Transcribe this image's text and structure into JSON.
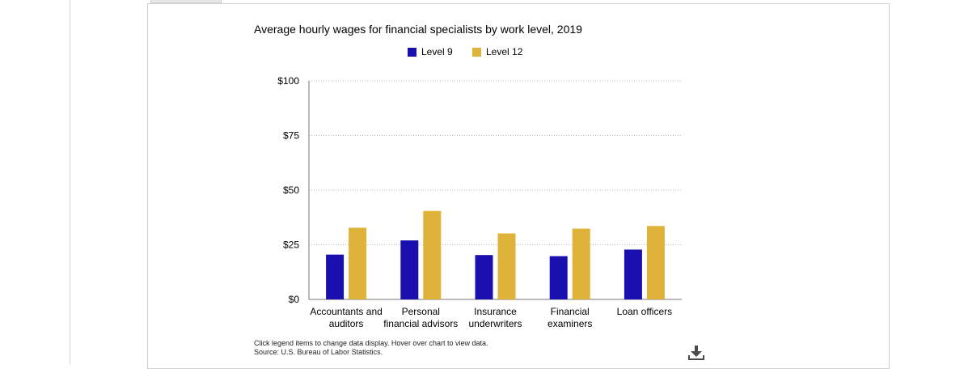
{
  "page": {
    "note_line1": "Click legend items to change data display. Hover over chart to view data.",
    "note_line2": "Source: U.S. Bureau of Labor Statistics.",
    "download_icon": "download-icon"
  },
  "chart_data": {
    "type": "bar",
    "title": "Average hourly wages for financial specialists by work level, 2019",
    "xlabel": "",
    "ylabel": "",
    "categories": [
      [
        "Accountants and",
        "auditors"
      ],
      [
        "Personal",
        "financial advisors"
      ],
      [
        "Insurance",
        "underwriters"
      ],
      [
        "Financial",
        "examiners"
      ],
      [
        "Loan officers"
      ]
    ],
    "series": [
      {
        "name": "Level 9",
        "color": "#1a0faf",
        "values": [
          20.5,
          27.0,
          20.3,
          19.8,
          22.8
        ]
      },
      {
        "name": "Level 12",
        "color": "#dfb23a",
        "values": [
          32.8,
          40.5,
          30.2,
          32.4,
          33.6
        ]
      }
    ],
    "yticks": [
      0,
      25,
      50,
      75,
      100
    ],
    "ytick_labels": [
      "$0",
      "$25",
      "$50",
      "$75",
      "$100"
    ],
    "ylim": [
      0,
      100
    ],
    "grid": true,
    "legend_position": "top-center"
  }
}
